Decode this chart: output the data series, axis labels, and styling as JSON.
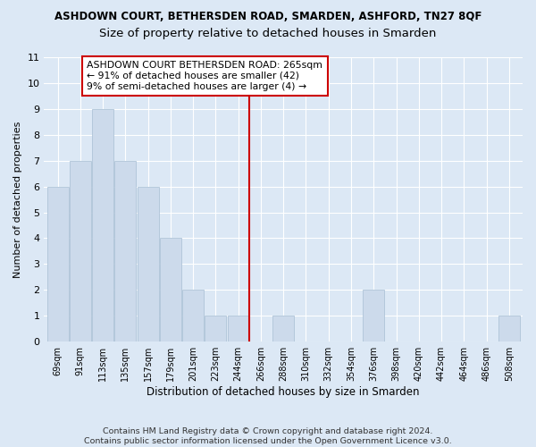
{
  "title": "ASHDOWN COURT, BETHERSDEN ROAD, SMARDEN, ASHFORD, TN27 8QF",
  "subtitle": "Size of property relative to detached houses in Smarden",
  "xlabel": "Distribution of detached houses by size in Smarden",
  "ylabel": "Number of detached properties",
  "categories": [
    "69sqm",
    "91sqm",
    "113sqm",
    "135sqm",
    "157sqm",
    "179sqm",
    "201sqm",
    "223sqm",
    "244sqm",
    "266sqm",
    "288sqm",
    "310sqm",
    "332sqm",
    "354sqm",
    "376sqm",
    "398sqm",
    "420sqm",
    "442sqm",
    "464sqm",
    "486sqm",
    "508sqm"
  ],
  "values": [
    6,
    7,
    9,
    7,
    6,
    4,
    2,
    1,
    1,
    0,
    1,
    0,
    0,
    0,
    2,
    0,
    0,
    0,
    0,
    0,
    1
  ],
  "bar_color": "#ccdaeb",
  "bar_edge_color": "#afc4d8",
  "vline_x_index": 9,
  "vline_color": "#cc0000",
  "annotation_text": "ASHDOWN COURT BETHERSDEN ROAD: 265sqm\n← 91% of detached houses are smaller (42)\n9% of semi-detached houses are larger (4) →",
  "annotation_box_color": "#ffffff",
  "annotation_box_edge": "#cc0000",
  "ylim": [
    0,
    11
  ],
  "yticks": [
    0,
    1,
    2,
    3,
    4,
    5,
    6,
    7,
    8,
    9,
    10,
    11
  ],
  "bg_color": "#dce8f5",
  "plot_bg_color": "#dce8f5",
  "grid_color": "#ffffff",
  "footer": "Contains HM Land Registry data © Crown copyright and database right 2024.\nContains public sector information licensed under the Open Government Licence v3.0.",
  "title_fontsize": 8.5,
  "subtitle_fontsize": 9.5,
  "xlabel_fontsize": 8.5,
  "ylabel_fontsize": 8,
  "tick_fontsize": 7,
  "annotation_fontsize": 7.8,
  "footer_fontsize": 6.8
}
